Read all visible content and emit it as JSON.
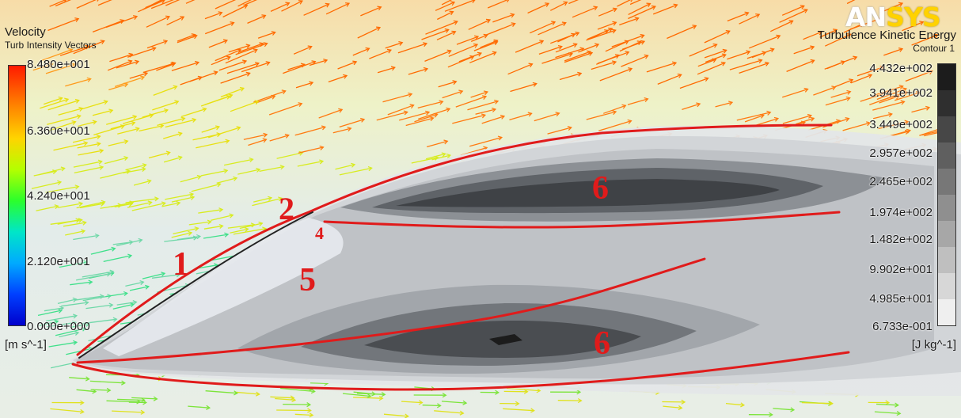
{
  "left_legend": {
    "title": "Velocity",
    "subtitle": "Turb Intensity Vectors",
    "ticks": [
      "8.480e+001",
      "6.360e+001",
      "4.240e+001",
      "2.120e+001",
      "0.000e+000"
    ],
    "unit": "[m s^-1]"
  },
  "right_legend": {
    "title": "Turbulence Kinetic Energy",
    "subtitle": "Contour 1",
    "ticks": [
      "4.432e+002",
      "3.941e+002",
      "3.449e+002",
      "2.957e+002",
      "2.465e+002",
      "1.974e+002",
      "1.482e+002",
      "9.902e+001",
      "4.985e+001",
      "6.733e-001"
    ],
    "unit": "[J kg^-1]"
  },
  "logo": {
    "part1": "AN",
    "part2": "SYS"
  },
  "region_labels": [
    "1",
    "2",
    "4",
    "5",
    "6",
    "6"
  ],
  "colors": {
    "annotation_red": "#e01b1b",
    "logo_yellow": "#ffd200",
    "contour_greys": [
      "#1c1c1c",
      "#2f2f2f",
      "#474747",
      "#5f5f5f",
      "#777777",
      "#8f8f8f",
      "#a7a7a7",
      "#bfbfbf",
      "#d7d7d7",
      "#efefef"
    ]
  }
}
